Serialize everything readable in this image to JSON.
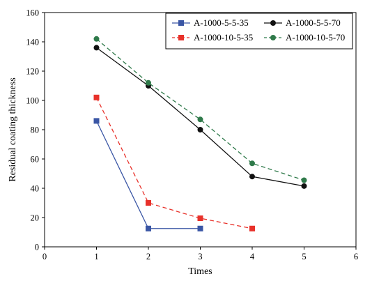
{
  "chart_data": {
    "type": "line",
    "title": "",
    "xlabel": "Times",
    "ylabel": "Residual coating thickness",
    "xlim": [
      0,
      6
    ],
    "ylim": [
      0,
      160
    ],
    "xticks": [
      0,
      1,
      2,
      3,
      4,
      5,
      6
    ],
    "yticks": [
      0,
      20,
      40,
      60,
      80,
      100,
      120,
      140,
      160
    ],
    "grid": false,
    "legend_position": "top-right",
    "series": [
      {
        "name": "A-1000-5-5-35",
        "color": "#3a56a5",
        "line_style": "solid",
        "marker": "square",
        "x": [
          1,
          2,
          3
        ],
        "y": [
          86,
          12.5,
          12.5
        ]
      },
      {
        "name": "A-1000-10-5-35",
        "color": "#e8312a",
        "line_style": "dashed",
        "marker": "square",
        "x": [
          1,
          2,
          3,
          4
        ],
        "y": [
          102,
          30,
          19.5,
          12.5
        ]
      },
      {
        "name": "A-1000-5-5-70",
        "color": "#111111",
        "line_style": "solid",
        "marker": "circle",
        "x": [
          1,
          2,
          3,
          4,
          5
        ],
        "y": [
          136,
          110,
          80,
          48,
          41.5
        ]
      },
      {
        "name": "A-1000-10-5-70",
        "color": "#2f7a4a",
        "line_style": "dashed",
        "marker": "circle",
        "x": [
          1,
          2,
          3,
          4,
          5
        ],
        "y": [
          142,
          112,
          87,
          57,
          45.5
        ]
      }
    ]
  }
}
